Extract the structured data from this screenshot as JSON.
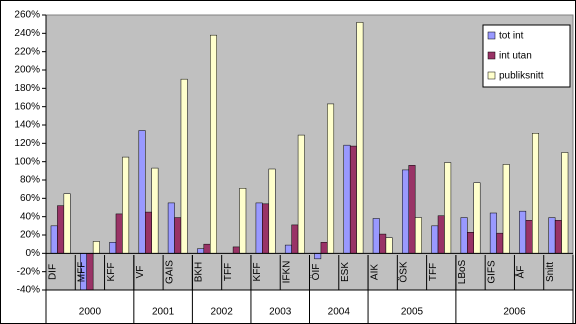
{
  "chart_data": {
    "type": "bar",
    "categories": [
      "DIF",
      "MFF",
      "KFF",
      "VF",
      "GAIS",
      "BKH",
      "TFF",
      "KFF",
      "IFKN",
      "ÖIF",
      "ESK",
      "AIK",
      "ÖSK",
      "TFF",
      "LBoS",
      "GIFS",
      "ÅF",
      "Snitt"
    ],
    "groups": [
      {
        "name": "2000",
        "count": 3
      },
      {
        "name": "2001",
        "count": 2
      },
      {
        "name": "2002",
        "count": 2
      },
      {
        "name": "2003",
        "count": 2
      },
      {
        "name": "2004",
        "count": 2
      },
      {
        "name": "2005",
        "count": 3
      },
      {
        "name": "2006",
        "count": 4
      }
    ],
    "series": [
      {
        "name": "tot int",
        "color": "#9999ff",
        "values": [
          30,
          -40,
          12,
          134,
          55,
          5,
          0,
          55,
          9,
          -6,
          118,
          38,
          91,
          30,
          39,
          44,
          46,
          39
        ]
      },
      {
        "name": "int utan",
        "color": "#993366",
        "values": [
          52,
          -40,
          43,
          45,
          39,
          10,
          7,
          54,
          31,
          12,
          117,
          21,
          96,
          41,
          23,
          22,
          36,
          36
        ]
      },
      {
        "name": "publiksnitt",
        "color": "#ffffcc",
        "values": [
          65,
          13,
          105,
          93,
          190,
          238,
          71,
          92,
          129,
          163,
          252,
          17,
          39,
          99,
          77,
          97,
          131,
          110
        ]
      }
    ],
    "ylim": [
      -40,
      260
    ],
    "yticks": [
      {
        "value": -40,
        "label": "-40%"
      },
      {
        "value": -20,
        "label": "-20%"
      },
      {
        "value": 0,
        "label": "0%"
      },
      {
        "value": 20,
        "label": "20%"
      },
      {
        "value": 40,
        "label": "40%"
      },
      {
        "value": 60,
        "label": "60%"
      },
      {
        "value": 80,
        "label": "80%"
      },
      {
        "value": 100,
        "label": "100%"
      },
      {
        "value": 120,
        "label": "120%"
      },
      {
        "value": 140,
        "label": "140%"
      },
      {
        "value": 160,
        "label": "160%"
      },
      {
        "value": 180,
        "label": "180%"
      },
      {
        "value": 200,
        "label": "200%"
      },
      {
        "value": 220,
        "label": "220%"
      },
      {
        "value": 240,
        "label": "240%"
      },
      {
        "value": 260,
        "label": "260%"
      }
    ],
    "grid": false,
    "legend": "top-right",
    "background": "#c0c0c0"
  }
}
